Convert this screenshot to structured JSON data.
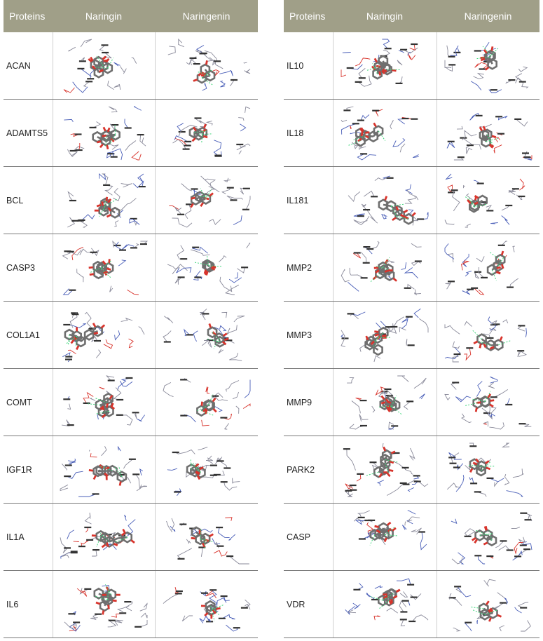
{
  "left_table": {
    "headers": [
      "Proteins",
      "Naringin",
      "Naringenin"
    ],
    "rows": [
      {
        "protein": "ACAN"
      },
      {
        "protein": "ADAMTS5"
      },
      {
        "protein": "BCL"
      },
      {
        "protein": "CASP3"
      },
      {
        "protein": "COL1A1"
      },
      {
        "protein": "COMT"
      },
      {
        "protein": "IGF1R"
      },
      {
        "protein": "IL1A"
      },
      {
        "protein": "IL6"
      }
    ]
  },
  "right_table": {
    "headers": [
      "Proteins",
      "Naringin",
      "Naringenin"
    ],
    "rows": [
      {
        "protein": "IL10"
      },
      {
        "protein": "IL18"
      },
      {
        "protein": "IL181"
      },
      {
        "protein": "MMP2"
      },
      {
        "protein": "MMP3"
      },
      {
        "protein": "MMP9"
      },
      {
        "protein": "PARK2"
      },
      {
        "protein": "CASP"
      },
      {
        "protein": "VDR"
      }
    ]
  },
  "colors": {
    "header_bg": "#a09f88",
    "header_text": "#ffffff",
    "ligand": "#6f6f6f",
    "oxygen": "#d8342c",
    "nitrogen": "#4a5fb8",
    "hbond": "#3fd67a",
    "residue_wire": "#8a8a9a"
  },
  "icons": {
    "cell_image": "molecular-docking-image"
  }
}
